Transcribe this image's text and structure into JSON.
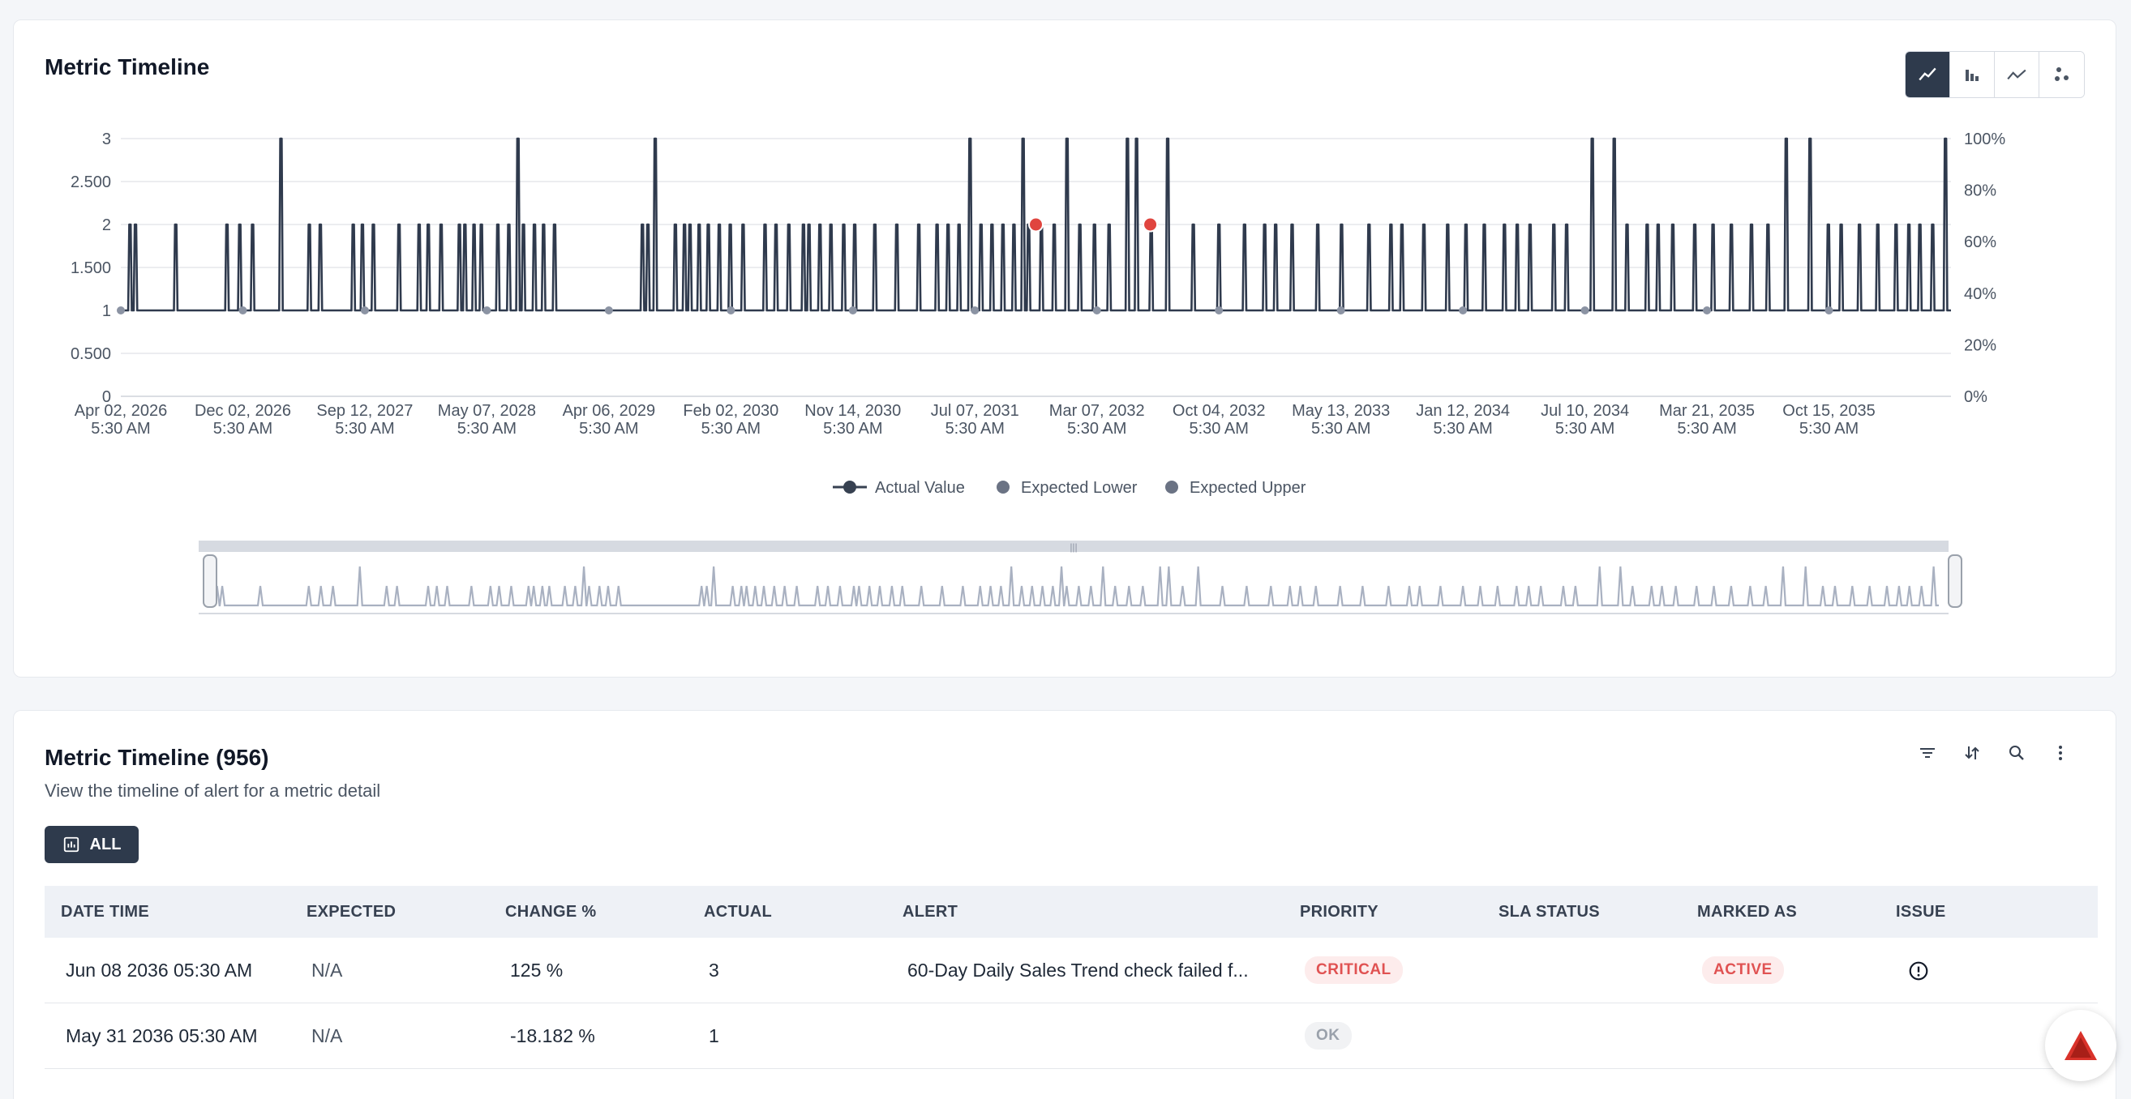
{
  "chart_card": {
    "title": "Metric Timeline",
    "view_toggles": [
      "line-chart-icon",
      "bar-chart-icon",
      "trend-line-icon",
      "scatter-icon"
    ]
  },
  "chart_data": {
    "type": "line",
    "y_ticks": [
      "0",
      "0.500",
      "1",
      "1.500",
      "2",
      "2.500",
      "3"
    ],
    "y_right_ticks": [
      "0%",
      "20%",
      "40%",
      "60%",
      "80%",
      "100%"
    ],
    "ylim": [
      0,
      3
    ],
    "x_ticks": [
      {
        "date": "Apr 02, 2026",
        "time": "5:30 AM"
      },
      {
        "date": "Dec 02, 2026",
        "time": "5:30 AM"
      },
      {
        "date": "Sep 12, 2027",
        "time": "5:30 AM"
      },
      {
        "date": "May 07, 2028",
        "time": "5:30 AM"
      },
      {
        "date": "Apr 06, 2029",
        "time": "5:30 AM"
      },
      {
        "date": "Feb 02, 2030",
        "time": "5:30 AM"
      },
      {
        "date": "Nov 14, 2030",
        "time": "5:30 AM"
      },
      {
        "date": "Jul 07, 2031",
        "time": "5:30 AM"
      },
      {
        "date": "Mar 07, 2032",
        "time": "5:30 AM"
      },
      {
        "date": "Oct 04, 2032",
        "time": "5:30 AM"
      },
      {
        "date": "May 13, 2033",
        "time": "5:30 AM"
      },
      {
        "date": "Jan 12, 2034",
        "time": "5:30 AM"
      },
      {
        "date": "Jul 10, 2034",
        "time": "5:30 AM"
      },
      {
        "date": "Mar 21, 2035",
        "time": "5:30 AM"
      },
      {
        "date": "Oct 15, 2035",
        "time": "5:30 AM"
      }
    ],
    "baseline_value": 1,
    "spikes": [
      {
        "x": 0.5,
        "v": 2
      },
      {
        "x": 0.8,
        "v": 2
      },
      {
        "x": 3.0,
        "v": 2
      },
      {
        "x": 5.8,
        "v": 2
      },
      {
        "x": 6.5,
        "v": 2
      },
      {
        "x": 7.2,
        "v": 2
      },
      {
        "x": 8.75,
        "v": 3
      },
      {
        "x": 10.3,
        "v": 2
      },
      {
        "x": 10.9,
        "v": 2
      },
      {
        "x": 12.7,
        "v": 2
      },
      {
        "x": 13.2,
        "v": 2
      },
      {
        "x": 13.8,
        "v": 2
      },
      {
        "x": 15.2,
        "v": 2
      },
      {
        "x": 16.3,
        "v": 2
      },
      {
        "x": 16.8,
        "v": 2
      },
      {
        "x": 17.5,
        "v": 2
      },
      {
        "x": 18.5,
        "v": 2
      },
      {
        "x": 18.8,
        "v": 2
      },
      {
        "x": 19.3,
        "v": 2
      },
      {
        "x": 19.7,
        "v": 2
      },
      {
        "x": 20.6,
        "v": 2
      },
      {
        "x": 21.2,
        "v": 2
      },
      {
        "x": 21.7,
        "v": 3
      },
      {
        "x": 22.0,
        "v": 2
      },
      {
        "x": 22.6,
        "v": 2
      },
      {
        "x": 23.1,
        "v": 2
      },
      {
        "x": 23.7,
        "v": 2
      },
      {
        "x": 28.5,
        "v": 2
      },
      {
        "x": 28.8,
        "v": 2
      },
      {
        "x": 29.2,
        "v": 3
      },
      {
        "x": 30.3,
        "v": 2
      },
      {
        "x": 30.8,
        "v": 2
      },
      {
        "x": 31.1,
        "v": 2
      },
      {
        "x": 31.6,
        "v": 2
      },
      {
        "x": 32.1,
        "v": 2
      },
      {
        "x": 32.7,
        "v": 2
      },
      {
        "x": 33.3,
        "v": 2
      },
      {
        "x": 34.0,
        "v": 2
      },
      {
        "x": 35.2,
        "v": 2
      },
      {
        "x": 35.8,
        "v": 2
      },
      {
        "x": 36.5,
        "v": 2
      },
      {
        "x": 37.3,
        "v": 2
      },
      {
        "x": 37.6,
        "v": 2
      },
      {
        "x": 38.2,
        "v": 2
      },
      {
        "x": 38.8,
        "v": 2
      },
      {
        "x": 39.5,
        "v": 2
      },
      {
        "x": 40.1,
        "v": 2
      },
      {
        "x": 41.2,
        "v": 2
      },
      {
        "x": 42.4,
        "v": 2
      },
      {
        "x": 43.6,
        "v": 2
      },
      {
        "x": 44.6,
        "v": 2
      },
      {
        "x": 45.2,
        "v": 2
      },
      {
        "x": 45.8,
        "v": 2
      },
      {
        "x": 46.4,
        "v": 3
      },
      {
        "x": 47.0,
        "v": 2
      },
      {
        "x": 47.6,
        "v": 2
      },
      {
        "x": 48.2,
        "v": 2
      },
      {
        "x": 48.8,
        "v": 2
      },
      {
        "x": 49.3,
        "v": 3
      },
      {
        "x": 49.6,
        "v": 2
      },
      {
        "x": 50.3,
        "v": 2
      },
      {
        "x": 51.0,
        "v": 2
      },
      {
        "x": 51.7,
        "v": 3
      },
      {
        "x": 52.4,
        "v": 2
      },
      {
        "x": 53.2,
        "v": 2
      },
      {
        "x": 54.0,
        "v": 2
      },
      {
        "x": 55.0,
        "v": 3
      },
      {
        "x": 55.5,
        "v": 3
      },
      {
        "x": 56.3,
        "v": 2
      },
      {
        "x": 57.2,
        "v": 3
      },
      {
        "x": 58.6,
        "v": 2
      },
      {
        "x": 60.0,
        "v": 2
      },
      {
        "x": 61.4,
        "v": 2
      },
      {
        "x": 62.5,
        "v": 2
      },
      {
        "x": 63.1,
        "v": 2
      },
      {
        "x": 64.0,
        "v": 2
      },
      {
        "x": 65.4,
        "v": 2
      },
      {
        "x": 66.7,
        "v": 2
      },
      {
        "x": 68.2,
        "v": 2
      },
      {
        "x": 69.4,
        "v": 2
      },
      {
        "x": 70.0,
        "v": 2
      },
      {
        "x": 71.2,
        "v": 2
      },
      {
        "x": 72.5,
        "v": 2
      },
      {
        "x": 73.5,
        "v": 2
      },
      {
        "x": 74.5,
        "v": 2
      },
      {
        "x": 75.6,
        "v": 2
      },
      {
        "x": 76.3,
        "v": 2
      },
      {
        "x": 77.0,
        "v": 2
      },
      {
        "x": 78.3,
        "v": 2
      },
      {
        "x": 79.0,
        "v": 2
      },
      {
        "x": 80.4,
        "v": 3
      },
      {
        "x": 81.6,
        "v": 3
      },
      {
        "x": 82.3,
        "v": 2
      },
      {
        "x": 83.4,
        "v": 2
      },
      {
        "x": 84.0,
        "v": 2
      },
      {
        "x": 84.8,
        "v": 2
      },
      {
        "x": 86.0,
        "v": 2
      },
      {
        "x": 87.0,
        "v": 2
      },
      {
        "x": 88.0,
        "v": 2
      },
      {
        "x": 89.1,
        "v": 2
      },
      {
        "x": 90.0,
        "v": 2
      },
      {
        "x": 91.0,
        "v": 3
      },
      {
        "x": 92.3,
        "v": 3
      },
      {
        "x": 93.3,
        "v": 2
      },
      {
        "x": 94.0,
        "v": 2
      },
      {
        "x": 95.0,
        "v": 2
      },
      {
        "x": 96.0,
        "v": 2
      },
      {
        "x": 97.0,
        "v": 2
      },
      {
        "x": 97.7,
        "v": 2
      },
      {
        "x": 98.3,
        "v": 2
      },
      {
        "x": 99.0,
        "v": 2
      },
      {
        "x": 99.7,
        "v": 3
      }
    ],
    "anomalies": [
      {
        "x": 50.0,
        "v": 2
      },
      {
        "x": 56.25,
        "v": 2
      }
    ],
    "legend": [
      {
        "name": "Actual Value",
        "color": "#374151"
      },
      {
        "name": "Expected Lower",
        "color": "#6b7384"
      },
      {
        "name": "Expected Upper",
        "color": "#6b7384"
      }
    ],
    "grid": true,
    "legend_position": "bottom"
  },
  "colors": {
    "line": "#2f3a4d",
    "anomaly": "#e0453f",
    "navigator": "#a9b1c1",
    "accent_dark": "#2e3a4c"
  },
  "table_card": {
    "title": "Metric Timeline (956)",
    "subtitle": "View the timeline of alert for a metric detail",
    "filter_all_label": "ALL",
    "toolbar_icons": [
      "filter-icon",
      "sort-icon",
      "search-icon",
      "more-options-icon"
    ],
    "columns": [
      "DATE TIME",
      "EXPECTED",
      "CHANGE %",
      "ACTUAL",
      "ALERT",
      "PRIORITY",
      "SLA STATUS",
      "MARKED AS",
      "ISSUE"
    ],
    "rows": [
      {
        "date_time": "Jun 08 2036 05:30 AM",
        "expected": "N/A",
        "change": "125 %",
        "actual": "3",
        "alert": "60-Day Daily Sales Trend check failed f...",
        "priority": "CRITICAL",
        "sla_status": "",
        "marked_as": "ACTIVE",
        "issue_icon": "alert-circle-icon"
      },
      {
        "date_time": "May 31 2036 05:30 AM",
        "expected": "N/A",
        "change": "-18.182 %",
        "actual": "1",
        "alert": "",
        "priority": "OK",
        "sla_status": "",
        "marked_as": "",
        "issue_icon": ""
      }
    ]
  }
}
